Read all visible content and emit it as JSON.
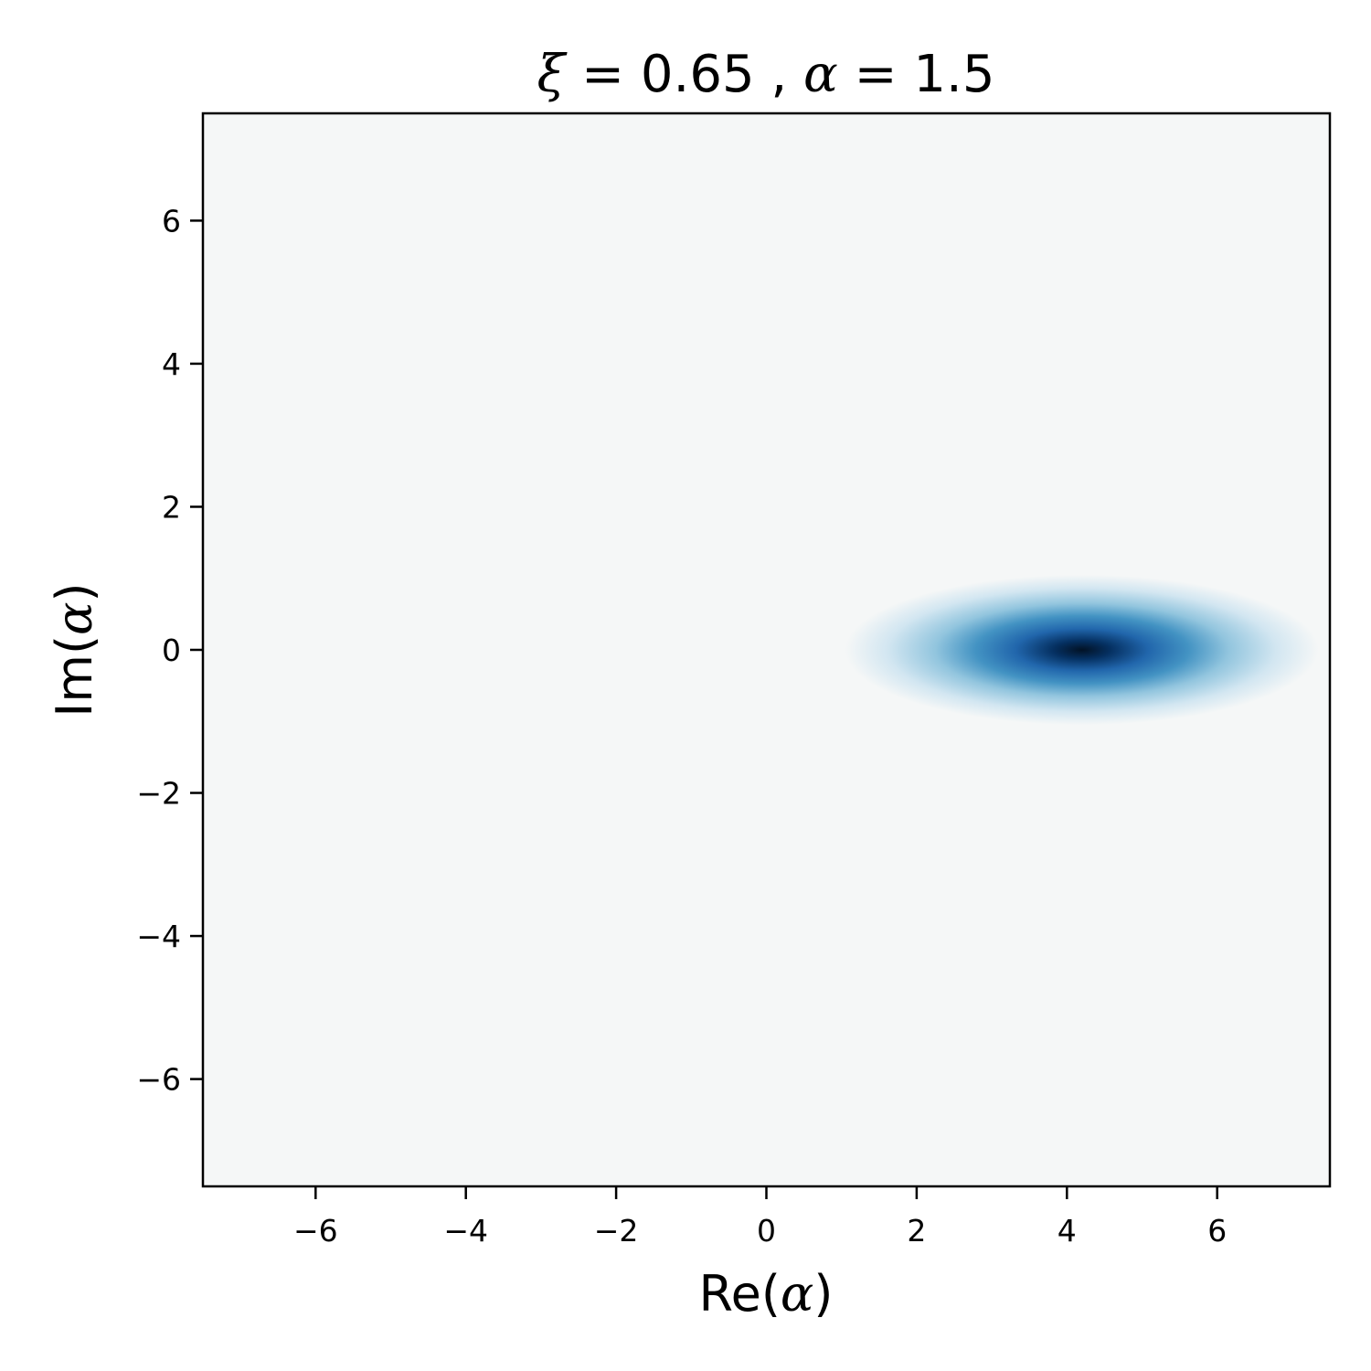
{
  "chart_data": {
    "type": "heatmap",
    "title_parts": {
      "xi_symbol": "ξ",
      "equals": "=",
      "xi_value": "0.65",
      "separator": ",",
      "alpha_symbol": "α",
      "alpha_value": "1.5"
    },
    "xlabel_parts": {
      "prefix": "Re(",
      "symbol": "α",
      "suffix": ")"
    },
    "ylabel_parts": {
      "prefix": "Im(",
      "symbol": "α",
      "suffix": ")"
    },
    "xlim": [
      -7.5,
      7.5
    ],
    "ylim": [
      -7.5,
      7.5
    ],
    "xticks": [
      -6,
      -4,
      -2,
      0,
      2,
      4,
      6
    ],
    "yticks": [
      -6,
      -4,
      -2,
      0,
      2,
      4,
      6
    ],
    "xtick_labels": [
      "−6",
      "−4",
      "−2",
      "0",
      "2",
      "4",
      "6"
    ],
    "ytick_labels": [
      "−6",
      "−4",
      "−2",
      "0",
      "2",
      "4",
      "6"
    ],
    "peak": {
      "x": 4.2,
      "y": 0.0,
      "sigma_x": 1.05,
      "sigma_y": 0.35
    },
    "colormap": [
      "#f5f7f7",
      "#d2e6f1",
      "#92c5de",
      "#4393c3",
      "#2166ac",
      "#053061",
      "#021225"
    ],
    "background_color": "#f5f7f7",
    "grid": false
  }
}
